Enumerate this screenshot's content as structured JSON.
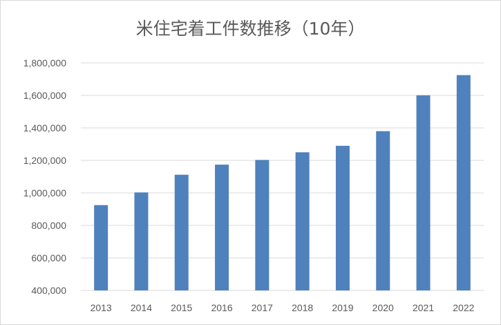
{
  "chart_data": {
    "type": "bar",
    "title": "米住宅着工件数推移（10年）",
    "xlabel": "",
    "ylabel": "",
    "categories": [
      "2013",
      "2014",
      "2015",
      "2016",
      "2017",
      "2018",
      "2019",
      "2020",
      "2021",
      "2022"
    ],
    "series": [
      {
        "values": [
          925000,
          1003000,
          1112000,
          1174000,
          1203000,
          1250000,
          1290000,
          1380000,
          1601000,
          1725000
        ]
      }
    ],
    "ylim": [
      400000,
      1800000
    ],
    "yticks": [
      "400,000",
      "600,000",
      "800,000",
      "1,000,000",
      "1,200,000",
      "1,400,000",
      "1,600,000",
      "1,800,000"
    ],
    "ytick_values": [
      400000,
      600000,
      800000,
      1000000,
      1200000,
      1400000,
      1600000,
      1800000
    ],
    "grid": true,
    "legend": "none",
    "bar_color": "#4f81bd",
    "grid_color": "#d9d9d9"
  }
}
